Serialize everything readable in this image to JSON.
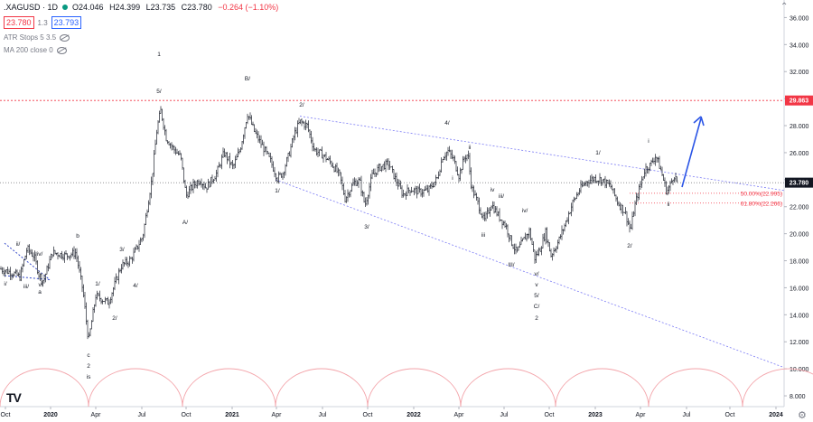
{
  "header": {
    "symbol": ".XAGUSD · 1D",
    "o": "O24.046",
    "h": "H24.399",
    "l": "L23.735",
    "c": "C23.780",
    "chg": "−0.264 (−1.10%)",
    "bid": "23.780",
    "spread": "1.3",
    "ask": "23.793",
    "ind1": "ATR Stops 5 3.5",
    "ind2": "MA 200 close 0"
  },
  "colors": {
    "bull": "#089981",
    "bear": "#f23645",
    "wave": "#7b7bf5",
    "arrow": "#2b55e6",
    "price_line": "#26292f",
    "level_line": "#f23645"
  },
  "chart_data": {
    "type": "ohlc",
    "x_ticks": [
      "Oct",
      "2020",
      "Apr",
      "Jul",
      "Oct",
      "2021",
      "Apr",
      "Jul",
      "Oct",
      "2022",
      "Apr",
      "Jul",
      "Oct",
      "2023",
      "Apr",
      "Jul",
      "Oct",
      "2024"
    ],
    "y_ticks": [
      "36.000",
      "34.000",
      "32.000",
      "30.000",
      "28.000",
      "26.000",
      "24.000",
      "22.000",
      "20.000",
      "18.000",
      "16.000",
      "14.000",
      "12.000",
      "10.000",
      "8.000"
    ],
    "ylim": [
      7.2,
      37.3
    ],
    "current_price": "23.780",
    "level_high": "29.863",
    "fib_levels": [
      {
        "label": "50.00%(22.995)",
        "value": 22.995
      },
      {
        "label": "61.80%(22.266)",
        "value": 22.266
      }
    ],
    "price_path": [
      [
        0,
        17.4
      ],
      [
        14,
        17.1
      ],
      [
        22,
        16.8
      ],
      [
        30,
        18.9
      ],
      [
        38,
        18.3
      ],
      [
        43,
        17.0
      ],
      [
        48,
        16.5
      ],
      [
        58,
        18.6
      ],
      [
        73,
        18.4
      ],
      [
        84,
        18.6
      ],
      [
        92,
        15.7
      ],
      [
        98,
        12.0
      ],
      [
        106,
        15.4
      ],
      [
        120,
        14.9
      ],
      [
        134,
        17.6
      ],
      [
        145,
        18.1
      ],
      [
        158,
        19.8
      ],
      [
        168,
        24.0
      ],
      [
        174,
        27.9
      ],
      [
        178,
        29.1
      ],
      [
        184,
        27.1
      ],
      [
        192,
        26.3
      ],
      [
        200,
        25.7
      ],
      [
        206,
        22.8
      ],
      [
        214,
        23.6
      ],
      [
        222,
        24.0
      ],
      [
        228,
        23.4
      ],
      [
        240,
        24.5
      ],
      [
        248,
        26.0
      ],
      [
        258,
        24.9
      ],
      [
        266,
        26.3
      ],
      [
        274,
        28.9
      ],
      [
        282,
        27.5
      ],
      [
        292,
        26.3
      ],
      [
        300,
        25.3
      ],
      [
        307,
        24.1
      ],
      [
        313,
        24.5
      ],
      [
        320,
        25.9
      ],
      [
        326,
        27.4
      ],
      [
        332,
        28.3
      ],
      [
        340,
        28.0
      ],
      [
        348,
        26.2
      ],
      [
        358,
        25.8
      ],
      [
        367,
        25.2
      ],
      [
        376,
        24.3
      ],
      [
        382,
        22.6
      ],
      [
        392,
        23.8
      ],
      [
        398,
        23.9
      ],
      [
        404,
        22.1
      ],
      [
        412,
        24.3
      ],
      [
        420,
        24.9
      ],
      [
        430,
        25.2
      ],
      [
        438,
        24.0
      ],
      [
        446,
        22.9
      ],
      [
        454,
        23.3
      ],
      [
        464,
        23.1
      ],
      [
        474,
        23.2
      ],
      [
        484,
        24.1
      ],
      [
        490,
        25.7
      ],
      [
        496,
        26.1
      ],
      [
        502,
        25.5
      ],
      [
        508,
        24.3
      ],
      [
        514,
        25.6
      ],
      [
        518,
        25.9
      ],
      [
        522,
        23.4
      ],
      [
        530,
        22.1
      ],
      [
        536,
        20.9
      ],
      [
        544,
        22.2
      ],
      [
        552,
        21.3
      ],
      [
        560,
        20.6
      ],
      [
        566,
        19.4
      ],
      [
        572,
        18.6
      ],
      [
        580,
        19.6
      ],
      [
        586,
        20.2
      ],
      [
        592,
        18.2
      ],
      [
        598,
        18.9
      ],
      [
        604,
        20.1
      ],
      [
        610,
        18.4
      ],
      [
        618,
        19.4
      ],
      [
        626,
        20.8
      ],
      [
        634,
        22.3
      ],
      [
        642,
        23.3
      ],
      [
        650,
        23.9
      ],
      [
        658,
        24.1
      ],
      [
        666,
        24.0
      ],
      [
        676,
        23.5
      ],
      [
        684,
        22.3
      ],
      [
        692,
        21.6
      ],
      [
        698,
        20.2
      ],
      [
        702,
        21.9
      ],
      [
        708,
        23.4
      ],
      [
        714,
        24.8
      ],
      [
        720,
        25.1
      ],
      [
        726,
        25.8
      ],
      [
        732,
        24.6
      ],
      [
        738,
        23.1
      ],
      [
        742,
        23.6
      ],
      [
        746,
        24.4
      ],
      [
        750,
        23.8
      ]
    ],
    "wave_labels": [
      [
        "ii/",
        20,
        272
      ],
      [
        "iv/",
        44,
        283
      ],
      [
        "b",
        86,
        263
      ],
      [
        "i/",
        6,
        316
      ],
      [
        "iii/",
        29,
        319
      ],
      [
        "v/",
        45,
        317
      ],
      [
        "a",
        44,
        325
      ],
      [
        "1/",
        108,
        316
      ],
      [
        "2/",
        127,
        354
      ],
      [
        "3/",
        135,
        278
      ],
      [
        "4/",
        150,
        318
      ],
      [
        "1",
        176,
        62
      ],
      [
        "5/",
        176,
        103
      ],
      [
        "A/",
        205,
        248
      ],
      [
        "c",
        98,
        395
      ],
      [
        "2",
        98,
        407
      ],
      [
        "is",
        98,
        419
      ],
      [
        "B/",
        274,
        89
      ],
      [
        "2/",
        334,
        118
      ],
      [
        "1/",
        307,
        213
      ],
      [
        "3/",
        406,
        253
      ],
      [
        "4/",
        495,
        138
      ],
      [
        "ii",
        520,
        165
      ],
      [
        "i",
        501,
        199
      ],
      [
        "iv",
        545,
        212
      ],
      [
        "iii/",
        555,
        219
      ],
      [
        "iv/",
        581,
        235
      ],
      [
        "iii",
        535,
        262
      ],
      [
        "III/",
        566,
        295
      ],
      [
        "v/",
        594,
        305
      ],
      [
        "v",
        594,
        317
      ],
      [
        "5/",
        594,
        329
      ],
      [
        "C/",
        594,
        341
      ],
      [
        "2",
        594,
        354
      ],
      [
        "1/",
        662,
        171
      ],
      [
        "2/",
        697,
        274
      ],
      [
        "i",
        718,
        158
      ],
      [
        "ii",
        740,
        228
      ]
    ]
  }
}
